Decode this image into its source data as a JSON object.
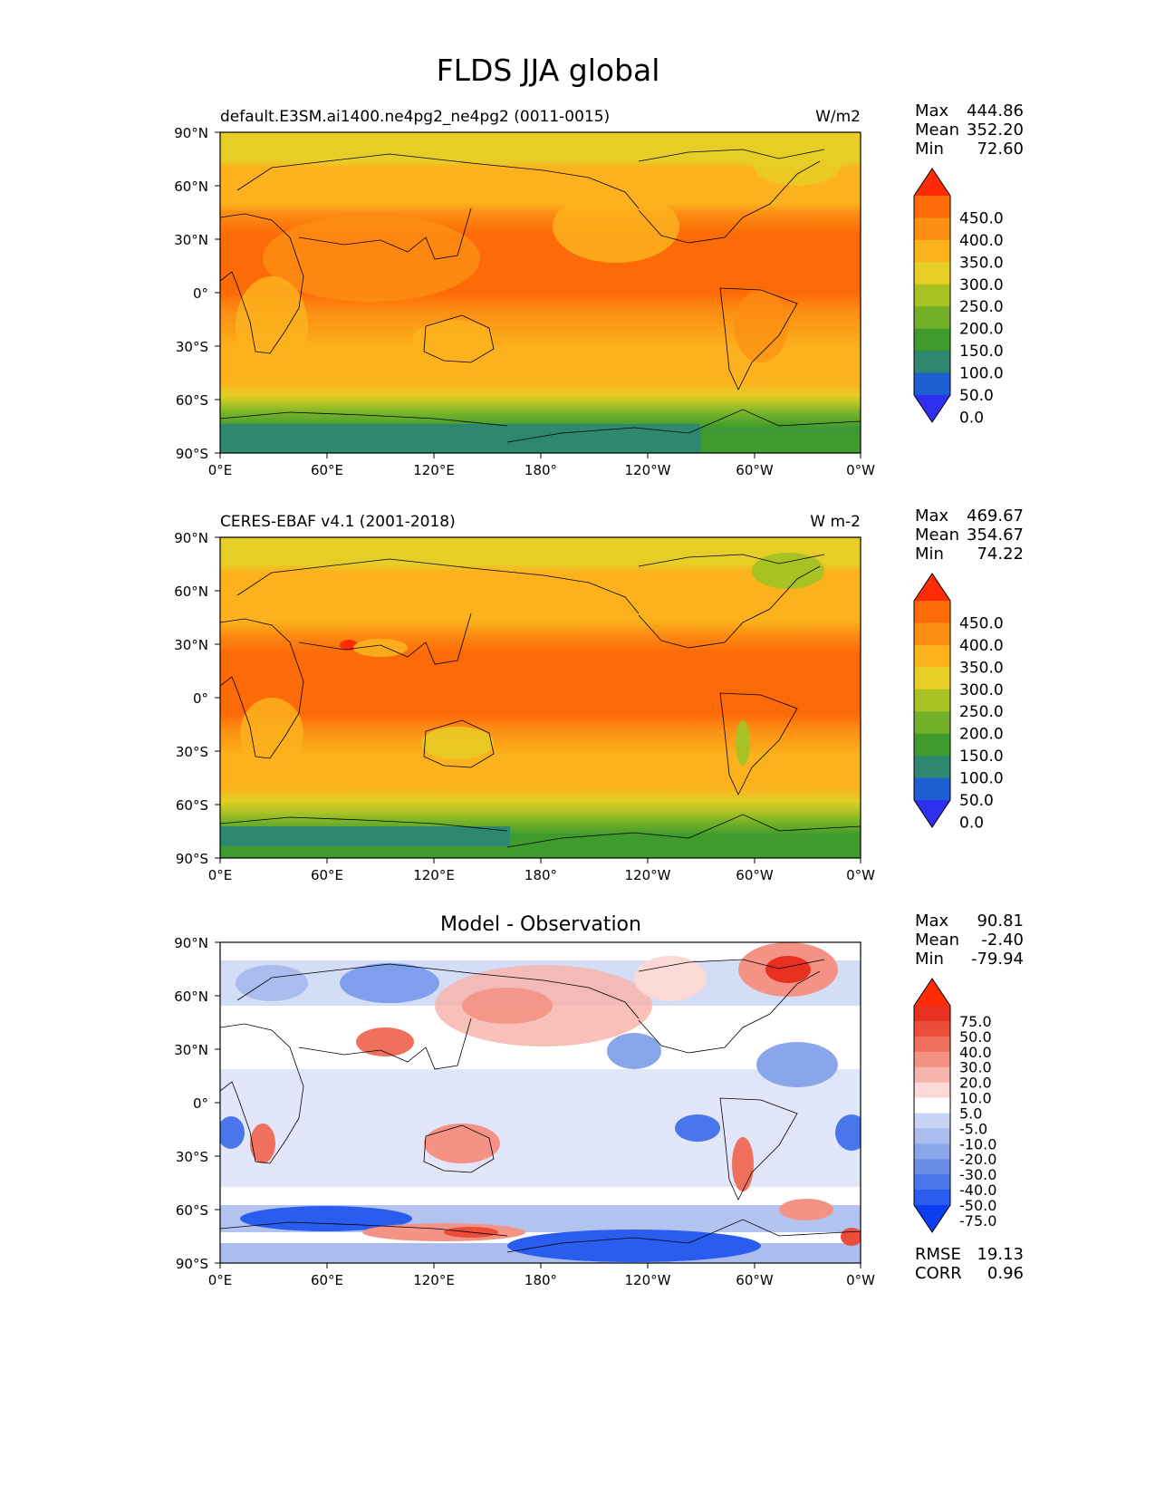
{
  "figure": {
    "title": "FLDS JJA global"
  },
  "axes": {
    "lat_ticks": [
      "90°N",
      "60°N",
      "30°N",
      "0°",
      "30°S",
      "60°S",
      "90°S"
    ],
    "lon_ticks": [
      "0°E",
      "60°E",
      "120°E",
      "180°",
      "120°W",
      "60°W",
      "0°W"
    ]
  },
  "panels": [
    {
      "id": "model",
      "title_left": "default.E3SM.ai1400.ne4pg2_ne4pg2 (0011-0015)",
      "title_center": "",
      "units": "W/m2",
      "stats": [
        {
          "label": "Max",
          "value": "444.86"
        },
        {
          "label": "Mean",
          "value": "352.20"
        },
        {
          "label": "Min",
          "value": "72.60"
        }
      ],
      "colorbar": {
        "labels": [
          "450.0",
          "400.0",
          "350.0",
          "300.0",
          "250.0",
          "200.0",
          "150.0",
          "100.0",
          "50.0",
          "0.0"
        ],
        "colors": [
          "#2f2ff0",
          "#1c5fd0",
          "#2e8870",
          "#3f9c2c",
          "#72b02a",
          "#a8c224",
          "#e6ce26",
          "#fbb21d",
          "#fc8f14",
          "#fd6a08",
          "#ff2a06"
        ]
      }
    },
    {
      "id": "obs",
      "title_left": "CERES-EBAF v4.1 (2001-2018)",
      "title_center": "",
      "units": "W m-2",
      "stats": [
        {
          "label": "Max",
          "value": "469.67"
        },
        {
          "label": "Mean",
          "value": "354.67"
        },
        {
          "label": "Min",
          "value": "74.22"
        }
      ],
      "colorbar": {
        "labels": [
          "450.0",
          "400.0",
          "350.0",
          "300.0",
          "250.0",
          "200.0",
          "150.0",
          "100.0",
          "50.0",
          "0.0"
        ],
        "colors": [
          "#2f2ff0",
          "#1c5fd0",
          "#2e8870",
          "#3f9c2c",
          "#72b02a",
          "#a8c224",
          "#e6ce26",
          "#fbb21d",
          "#fc8f14",
          "#fd6a08",
          "#ff2a06"
        ]
      }
    },
    {
      "id": "diff",
      "title_left": "",
      "title_center": "Model - Observation",
      "units": "",
      "stats": [
        {
          "label": "Max",
          "value": "90.81"
        },
        {
          "label": "Mean",
          "value": "-2.40"
        },
        {
          "label": "Min",
          "value": "-79.94"
        }
      ],
      "extra_stats": [
        {
          "label": "RMSE",
          "value": "19.13"
        },
        {
          "label": "CORR",
          "value": "0.96"
        }
      ],
      "colorbar": {
        "labels": [
          "75.0",
          "50.0",
          "40.0",
          "30.0",
          "20.0",
          "10.0",
          "5.0",
          "-5.0",
          "-10.0",
          "-20.0",
          "-30.0",
          "-40.0",
          "-50.0",
          "-75.0"
        ],
        "colors": [
          "#0a3cf0",
          "#2a5cf0",
          "#4a76ec",
          "#6a8ee8",
          "#8aa6ea",
          "#aabdee",
          "#c8d4f4",
          "#ffffff",
          "#fbd9d6",
          "#f7b5ad",
          "#f49385",
          "#f0705e",
          "#ec4d3a",
          "#e83020",
          "#ff2a06"
        ]
      }
    }
  ]
}
